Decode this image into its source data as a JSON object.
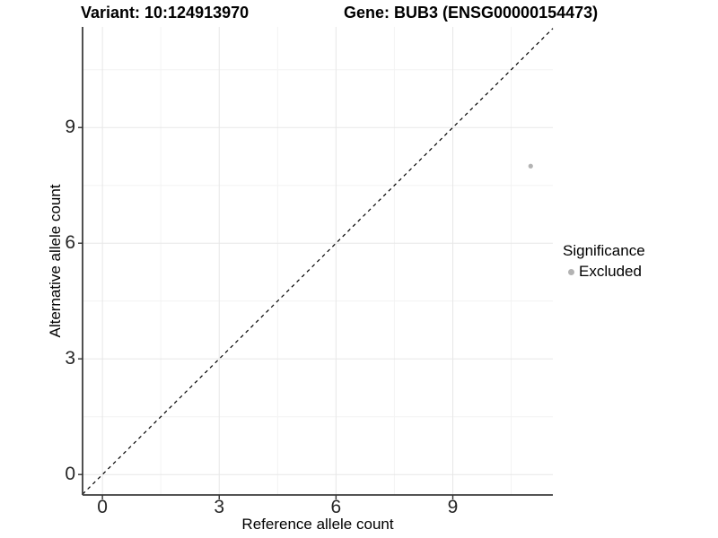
{
  "chart_data": {
    "type": "scatter",
    "titles": {
      "variant": "Variant: 10:124913970",
      "gene": "Gene: BUB3 (ENSG00000154473)"
    },
    "xlabel": "Reference allele count",
    "ylabel": "Alternative allele count",
    "x_ticks": [
      0,
      3,
      6,
      9
    ],
    "y_ticks": [
      0,
      3,
      6,
      9
    ],
    "x_minor": [
      1.5,
      4.5,
      7.5,
      10.5
    ],
    "y_minor": [
      1.5,
      4.5,
      7.5,
      10.5
    ],
    "xlim": [
      -0.51,
      11.57
    ],
    "ylim": [
      -0.53,
      11.61
    ],
    "grid": true,
    "points": [
      {
        "x": 11,
        "y": 8,
        "series": "Excluded"
      }
    ],
    "identity_line": {
      "slope": 1,
      "intercept": 0,
      "style": "dashed",
      "color": "#000000"
    },
    "legend": {
      "position": "right",
      "title": "Significance",
      "items": [
        {
          "label": "Excluded",
          "color": "#b3b3b3"
        }
      ]
    },
    "colors": {
      "point": "#b3b3b3",
      "grid_major": "#e7e7e7",
      "grid_minor": "#f3f3f3",
      "axis_line": "#3c3c3c",
      "tick_mark": "#333333",
      "tick_text": "#262626"
    }
  }
}
